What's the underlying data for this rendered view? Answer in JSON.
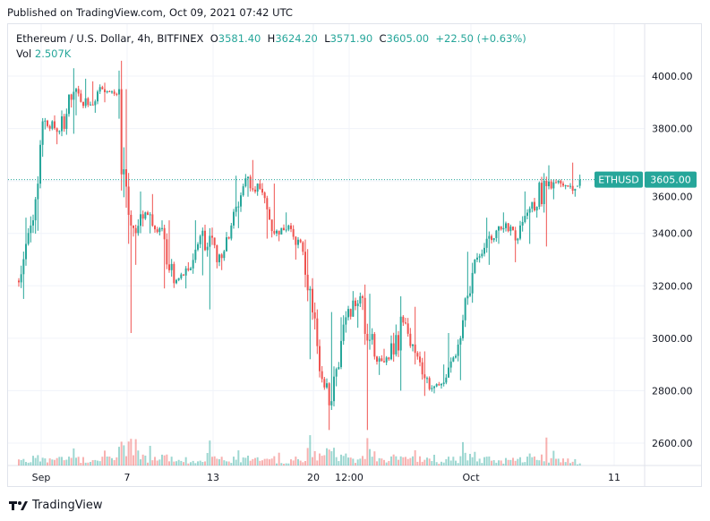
{
  "header": {
    "published": "Published on TradingView.com, Oct 09, 2021 07:42 UTC"
  },
  "legend": {
    "symbol": "Ethereum / U.S. Dollar, 4h, BITFINEX",
    "o_label": "O",
    "o": "3581.40",
    "h_label": "H",
    "h": "3624.20",
    "l_label": "L",
    "l": "3571.90",
    "c_label": "C",
    "c": "3605.00",
    "change": "+22.50 (+0.63%)",
    "vol_label": "Vol",
    "vol": "2.507K"
  },
  "price_tag": {
    "symbol": "ETHUSD",
    "price": "3605.00"
  },
  "footer": {
    "logo_text": "TradingView"
  },
  "colors": {
    "up": "#26a69a",
    "down": "#ef5350",
    "grid": "#f0f3fa"
  },
  "chart_data": {
    "type": "candlestick",
    "interval": "4h",
    "ylim": [
      2560,
      4080
    ],
    "y_ticks": [
      "4000.00",
      "3800.00",
      "3600.00",
      "3400.00",
      "3200.00",
      "3000.00",
      "2800.00",
      "2600.00"
    ],
    "x_ticks": [
      {
        "label": "Sep",
        "day": 1
      },
      {
        "label": "7",
        "day": 7
      },
      {
        "label": "13",
        "day": 13
      },
      {
        "label": "20",
        "day": 20
      },
      {
        "label": "12:00",
        "day": 22.5
      },
      {
        "label": "Oct",
        "day": 31
      },
      {
        "label": "11",
        "day": 41
      }
    ],
    "last_price": 3605.0,
    "daily_ohlc_approx": [
      {
        "date": "Aug 31",
        "o": 3220,
        "h": 3460,
        "l": 3150,
        "c": 3430,
        "v": 0.3
      },
      {
        "date": "Sep 1",
        "o": 3430,
        "h": 3840,
        "l": 3410,
        "c": 3830,
        "v": 0.4
      },
      {
        "date": "Sep 2",
        "o": 3830,
        "h": 3850,
        "l": 3740,
        "c": 3790,
        "v": 0.3
      },
      {
        "date": "Sep 3",
        "o": 3790,
        "h": 4030,
        "l": 3780,
        "c": 3940,
        "v": 0.4
      },
      {
        "date": "Sep 4",
        "o": 3940,
        "h": 3990,
        "l": 3850,
        "c": 3890,
        "v": 0.3
      },
      {
        "date": "Sep 5",
        "o": 3890,
        "h": 3980,
        "l": 3860,
        "c": 3950,
        "v": 0.3
      },
      {
        "date": "Sep 6",
        "o": 3950,
        "h": 3975,
        "l": 3900,
        "c": 3930,
        "v": 0.3
      },
      {
        "date": "Sep 7",
        "o": 3930,
        "h": 3950,
        "l": 3020,
        "c": 3430,
        "v": 1.0
      },
      {
        "date": "Sep 8",
        "o": 3430,
        "h": 3560,
        "l": 3280,
        "c": 3480,
        "v": 0.5
      },
      {
        "date": "Sep 9",
        "o": 3480,
        "h": 3550,
        "l": 3400,
        "c": 3420,
        "v": 0.3
      },
      {
        "date": "Sep 10",
        "o": 3420,
        "h": 3450,
        "l": 3190,
        "c": 3210,
        "v": 0.35
      },
      {
        "date": "Sep 11",
        "o": 3210,
        "h": 3290,
        "l": 3190,
        "c": 3260,
        "v": 0.2
      },
      {
        "date": "Sep 12",
        "o": 3260,
        "h": 3450,
        "l": 3240,
        "c": 3410,
        "v": 0.2
      },
      {
        "date": "Sep 13",
        "o": 3410,
        "h": 3420,
        "l": 3110,
        "c": 3290,
        "v": 0.4
      },
      {
        "date": "Sep 14",
        "o": 3290,
        "h": 3440,
        "l": 3260,
        "c": 3430,
        "v": 0.25
      },
      {
        "date": "Sep 15",
        "o": 3430,
        "h": 3620,
        "l": 3420,
        "c": 3610,
        "v": 0.3
      },
      {
        "date": "Sep 16",
        "o": 3610,
        "h": 3680,
        "l": 3540,
        "c": 3570,
        "v": 0.3
      },
      {
        "date": "Sep 17",
        "o": 3570,
        "h": 3590,
        "l": 3380,
        "c": 3400,
        "v": 0.3
      },
      {
        "date": "Sep 18",
        "o": 3400,
        "h": 3480,
        "l": 3370,
        "c": 3430,
        "v": 0.2
      },
      {
        "date": "Sep 19",
        "o": 3430,
        "h": 3440,
        "l": 3300,
        "c": 3330,
        "v": 0.2
      },
      {
        "date": "Sep 20",
        "o": 3330,
        "h": 3340,
        "l": 2920,
        "c": 2970,
        "v": 0.55
      },
      {
        "date": "Sep 21",
        "o": 2970,
        "h": 3100,
        "l": 2650,
        "c": 2760,
        "v": 0.7
      },
      {
        "date": "Sep 22",
        "o": 2760,
        "h": 3080,
        "l": 2740,
        "c": 3080,
        "v": 0.4
      },
      {
        "date": "Sep 23",
        "o": 3080,
        "h": 3180,
        "l": 3040,
        "c": 3160,
        "v": 0.25
      },
      {
        "date": "Sep 24",
        "o": 3160,
        "h": 3170,
        "l": 2650,
        "c": 2930,
        "v": 0.8
      },
      {
        "date": "Sep 25",
        "o": 2930,
        "h": 2960,
        "l": 2860,
        "c": 2920,
        "v": 0.25
      },
      {
        "date": "Sep 26",
        "o": 2920,
        "h": 3160,
        "l": 2800,
        "c": 3060,
        "v": 0.35
      },
      {
        "date": "Sep 27",
        "o": 3060,
        "h": 3120,
        "l": 2900,
        "c": 2930,
        "v": 0.3
      },
      {
        "date": "Sep 28",
        "o": 2930,
        "h": 2950,
        "l": 2780,
        "c": 2810,
        "v": 0.3
      },
      {
        "date": "Sep 29",
        "o": 2810,
        "h": 2900,
        "l": 2790,
        "c": 2850,
        "v": 0.2
      },
      {
        "date": "Sep 30",
        "o": 2850,
        "h": 3020,
        "l": 2840,
        "c": 3000,
        "v": 0.3
      },
      {
        "date": "Oct 1",
        "o": 3000,
        "h": 3330,
        "l": 2990,
        "c": 3300,
        "v": 0.45
      },
      {
        "date": "Oct 2",
        "o": 3300,
        "h": 3460,
        "l": 3280,
        "c": 3390,
        "v": 0.3
      },
      {
        "date": "Oct 3",
        "o": 3390,
        "h": 3480,
        "l": 3360,
        "c": 3420,
        "v": 0.2
      },
      {
        "date": "Oct 4",
        "o": 3420,
        "h": 3440,
        "l": 3290,
        "c": 3380,
        "v": 0.25
      },
      {
        "date": "Oct 5",
        "o": 3380,
        "h": 3560,
        "l": 3360,
        "c": 3520,
        "v": 0.3
      },
      {
        "date": "Oct 6",
        "o": 3520,
        "h": 3630,
        "l": 3350,
        "c": 3580,
        "v": 0.4
      },
      {
        "date": "Oct 7",
        "o": 3580,
        "h": 3660,
        "l": 3530,
        "c": 3590,
        "v": 0.25
      },
      {
        "date": "Oct 8",
        "o": 3590,
        "h": 3670,
        "l": 3540,
        "c": 3570,
        "v": 0.25
      },
      {
        "date": "Oct 9",
        "o": 3581.4,
        "h": 3624.2,
        "l": 3571.9,
        "c": 3605.0,
        "v": 0.1
      }
    ]
  }
}
